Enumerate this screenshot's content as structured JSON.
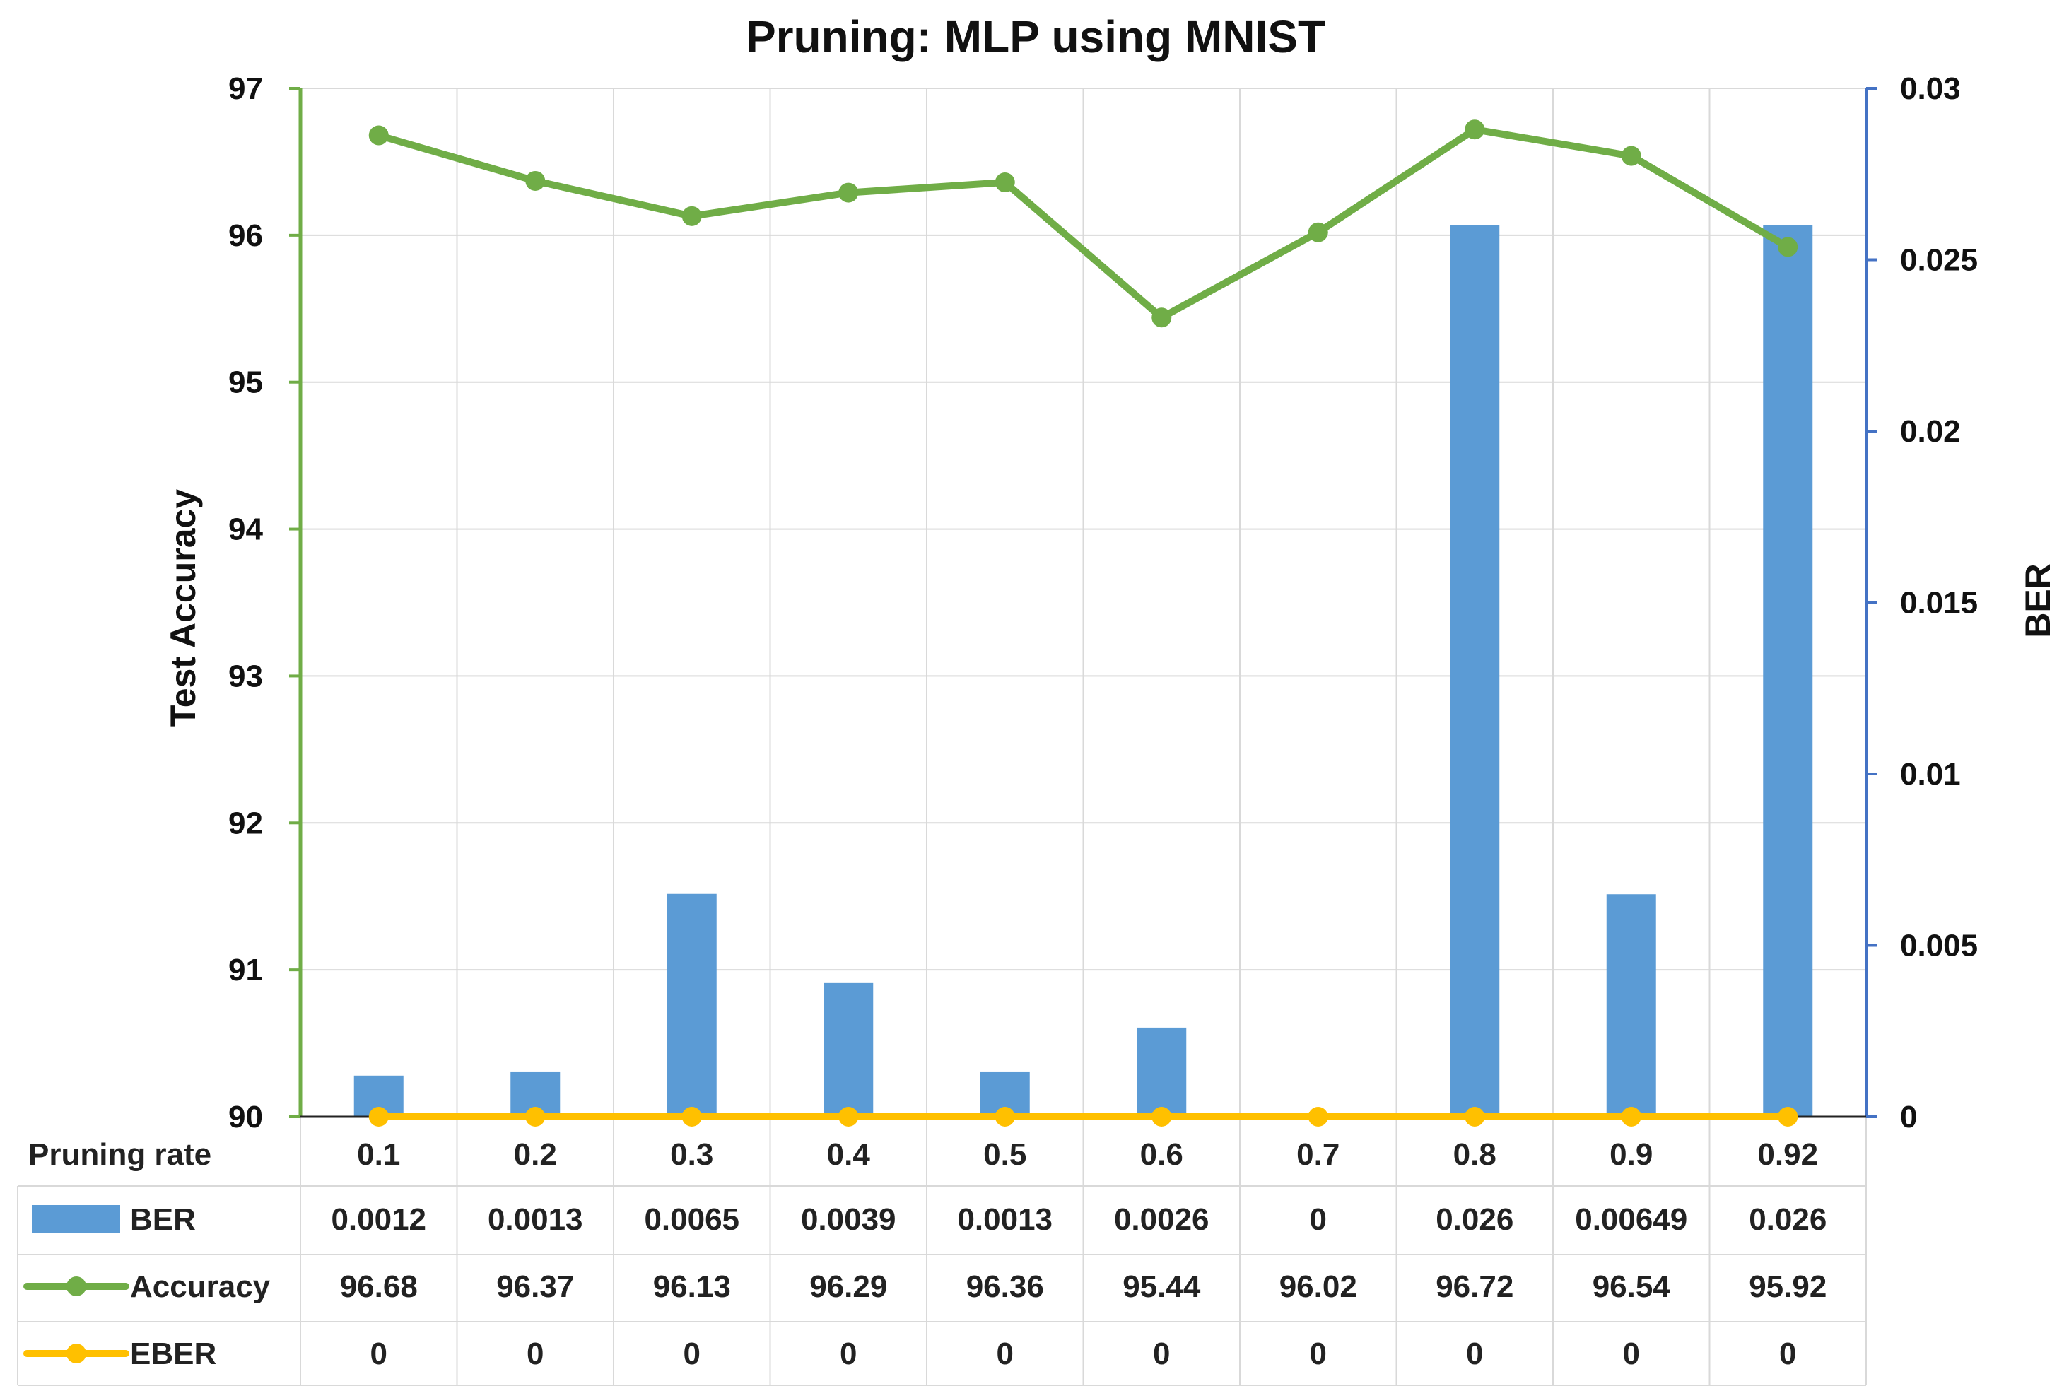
{
  "chart_data": {
    "type": "bar",
    "title": "Pruning: MLP using MNIST",
    "ylabel_left": "Test Accuracy",
    "ylabel_right": "BER",
    "row_header": "Pruning rate",
    "categories": [
      "0.1",
      "0.2",
      "0.3",
      "0.4",
      "0.5",
      "0.6",
      "0.7",
      "0.8",
      "0.9",
      "0.92"
    ],
    "ylim_left": [
      90,
      97
    ],
    "yticks_left": [
      "90",
      "91",
      "92",
      "93",
      "94",
      "95",
      "96",
      "97"
    ],
    "ylim_right": [
      0,
      0.03
    ],
    "yticks_right": [
      "0",
      "0.005",
      "0.01",
      "0.015",
      "0.02",
      "0.025",
      "0.03"
    ],
    "grid": true,
    "series": [
      {
        "name": "BER",
        "kind": "bar",
        "axis": "right",
        "color": "#5b9bd5",
        "values": [
          0.0012,
          0.0013,
          0.0065,
          0.0039,
          0.0013,
          0.0026,
          0,
          0.026,
          0.00649,
          0.026
        ],
        "labels": [
          "0.0012",
          "0.0013",
          "0.0065",
          "0.0039",
          "0.0013",
          "0.0026",
          "0",
          "0.026",
          "0.00649",
          "0.026"
        ]
      },
      {
        "name": "Accuracy",
        "kind": "line",
        "axis": "left",
        "color": "#70ad47",
        "values": [
          96.68,
          96.37,
          96.13,
          96.29,
          96.36,
          95.44,
          96.02,
          96.72,
          96.54,
          95.92
        ],
        "labels": [
          "96.68",
          "96.37",
          "96.13",
          "96.29",
          "96.36",
          "95.44",
          "96.02",
          "96.72",
          "96.54",
          "95.92"
        ]
      },
      {
        "name": "EBER",
        "kind": "line",
        "axis": "right",
        "color": "#ffc000",
        "values": [
          0,
          0,
          0,
          0,
          0,
          0,
          0,
          0,
          0,
          0
        ],
        "labels": [
          "0",
          "0",
          "0",
          "0",
          "0",
          "0",
          "0",
          "0",
          "0",
          "0"
        ]
      }
    ],
    "left_axis_color": "#70ad47",
    "right_axis_color": "#4472c4"
  }
}
